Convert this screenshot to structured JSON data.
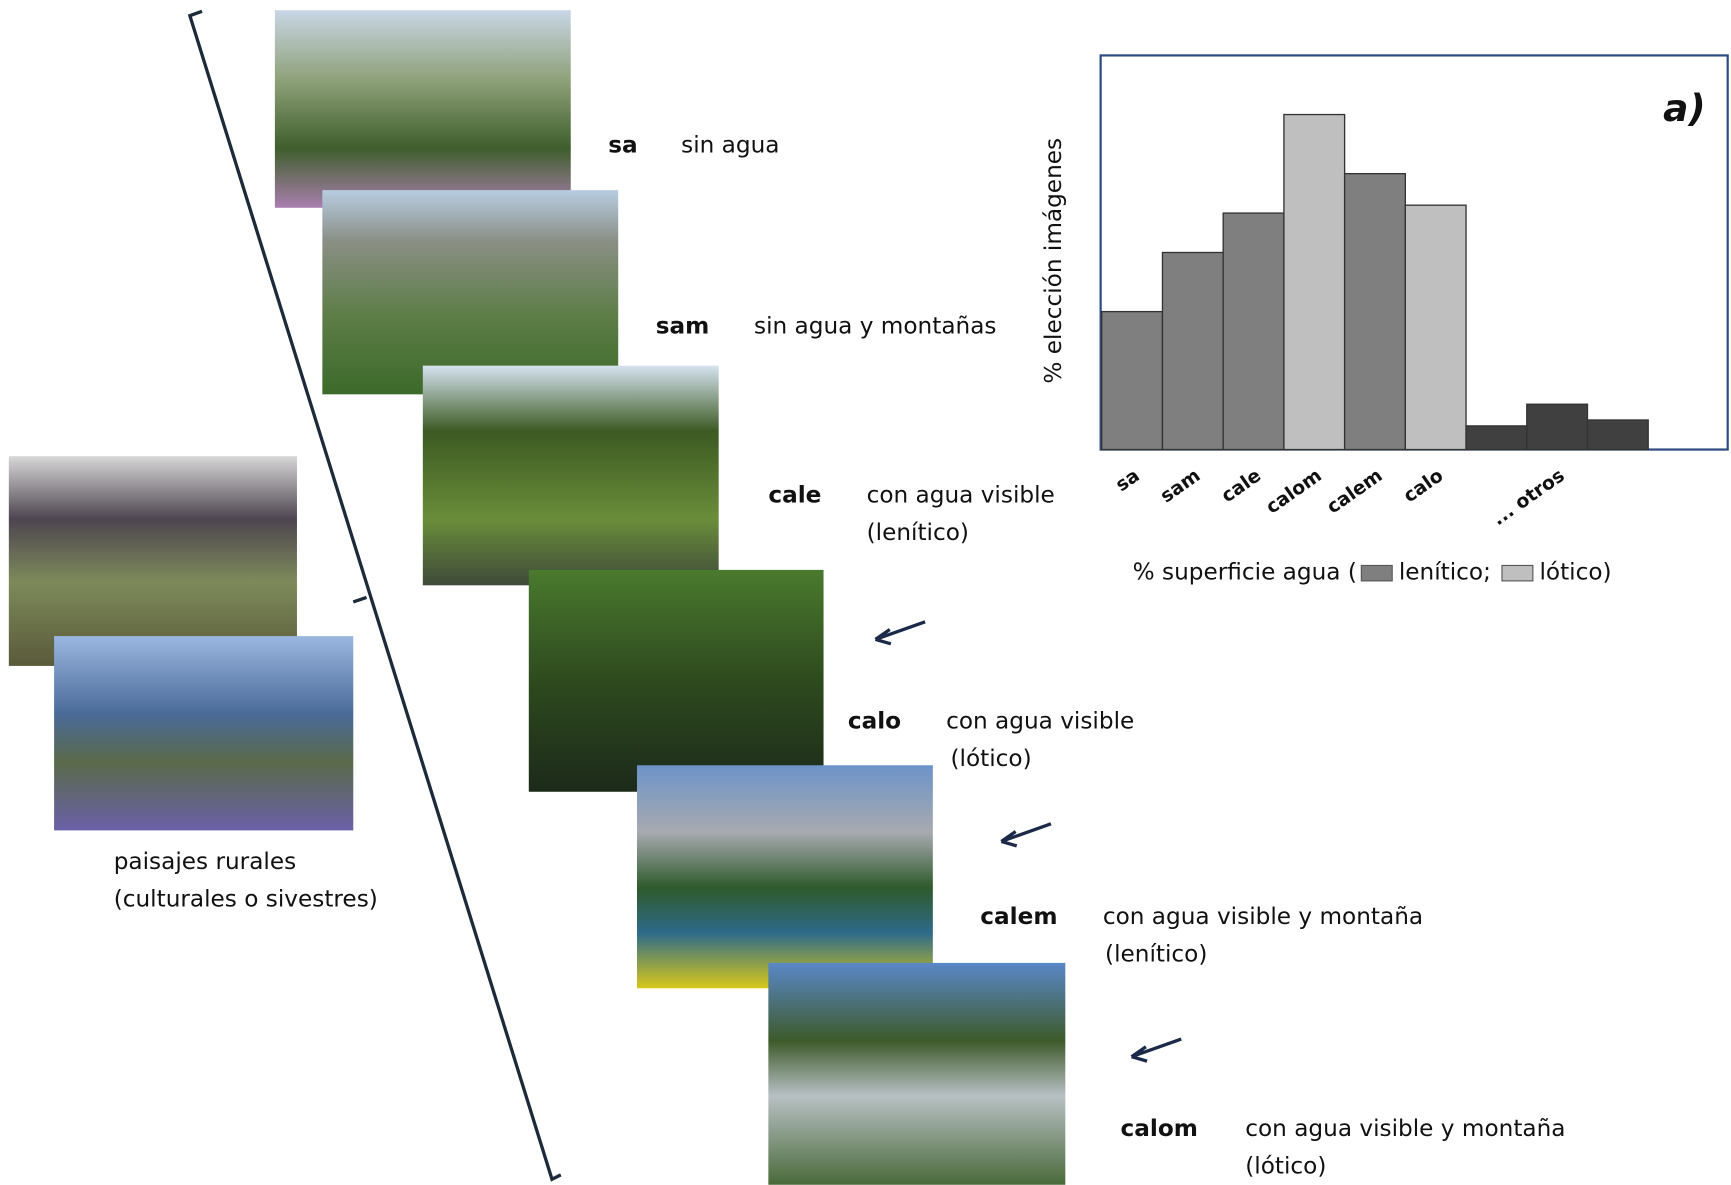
{
  "chart_data": {
    "type": "bar",
    "panel_label": "a)",
    "ylabel": "% elección imágenes",
    "categories": [
      "sa",
      "sam",
      "cale",
      "calom",
      "calem",
      "calo",
      null,
      "... otros",
      null
    ],
    "values": [
      35,
      50,
      60,
      85,
      70,
      62,
      6,
      11.5,
      7.5
    ],
    "colors": [
      "#7f7f7f",
      "#7f7f7f",
      "#7f7f7f",
      "#bfbfbf",
      "#7f7f7f",
      "#bfbfbf",
      "#404040",
      "#404040",
      "#404040"
    ],
    "ylim": [
      0,
      100
    ],
    "xlabel": "% superficie agua (",
    "legend": [
      {
        "name": "lenítico;",
        "color": "#7f7f7f"
      },
      {
        "name": "lótico)",
        "color": "#bfbfbf"
      }
    ]
  },
  "items": [
    {
      "code": "sa",
      "desc": [
        "sin agua"
      ]
    },
    {
      "code": "sam",
      "desc": [
        "sin agua y montañas"
      ]
    },
    {
      "code": "cale",
      "desc": [
        "con agua visible",
        "(lenítico)"
      ]
    },
    {
      "code": "calo",
      "desc": [
        "con agua visible",
        "(lótico)"
      ]
    },
    {
      "code": "calem",
      "desc": [
        "con agua visible y montaña",
        "(lenítico)"
      ]
    },
    {
      "code": "calom",
      "desc": [
        "con agua visible y montaña",
        "(lótico)"
      ]
    }
  ],
  "rural_caption": [
    "paisajes rurales",
    "(culturales o sivestres)"
  ]
}
